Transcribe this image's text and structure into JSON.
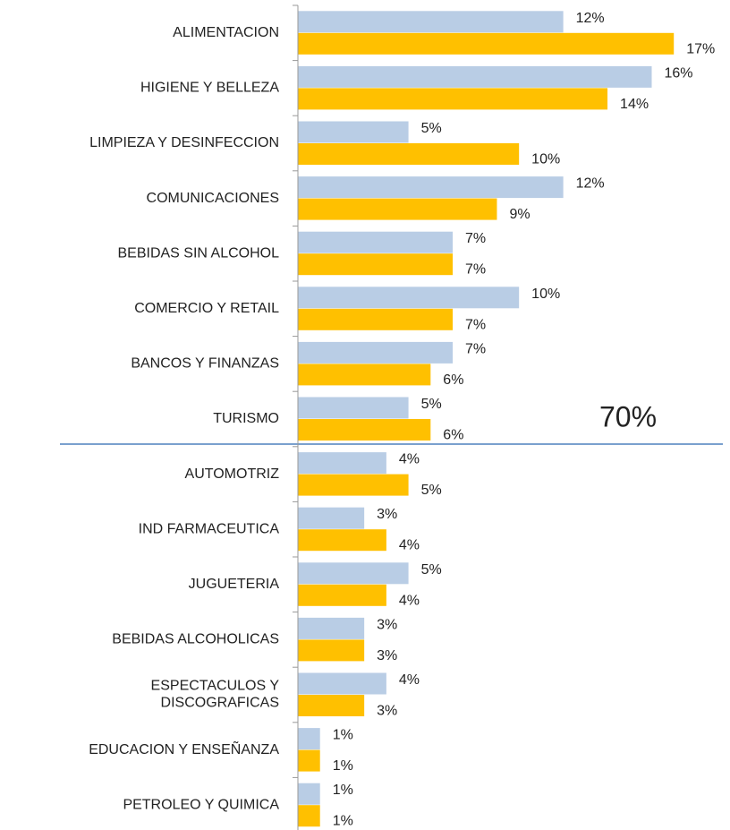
{
  "chart_data": {
    "type": "barh",
    "categories": [
      "ALIMENTACION",
      "HIGIENE Y BELLEZA",
      "LIMPIEZA Y DESINFECCION",
      "COMUNICACIONES",
      "BEBIDAS SIN ALCOHOL",
      "COMERCIO Y RETAIL",
      "BANCOS Y FINANZAS",
      "TURISMO",
      "AUTOMOTRIZ",
      "IND FARMACEUTICA",
      "JUGUETERIA",
      "BEBIDAS ALCOHOLICAS",
      "ESPECTACULOS Y\nDISCOGRAFICAS",
      "EDUCACION Y ENSEÑANZA",
      "PETROLEO Y QUIMICA"
    ],
    "series": [
      {
        "color": "#b9cde5",
        "values": [
          12,
          16,
          5,
          12,
          7,
          10,
          7,
          5,
          4,
          3,
          5,
          3,
          4,
          1,
          1
        ],
        "value_labels": [
          "12%",
          "16%",
          "5%",
          "12%",
          "7%",
          "10%",
          "7%",
          "5%",
          "4%",
          "3%",
          "5%",
          "3%",
          "4%",
          "1%",
          "1%"
        ]
      },
      {
        "color": "#ffc000",
        "values": [
          17,
          14,
          10,
          9,
          7,
          7,
          6,
          6,
          5,
          4,
          4,
          3,
          3,
          1,
          1
        ],
        "value_labels": [
          "17%",
          "14%",
          "10%",
          "9%",
          "7%",
          "7%",
          "6%",
          "6%",
          "5%",
          "4%",
          "4%",
          "3%",
          "3%",
          "1%",
          "1%"
        ]
      }
    ],
    "xlim": [
      0,
      19.5
    ],
    "annotation": "70%"
  }
}
